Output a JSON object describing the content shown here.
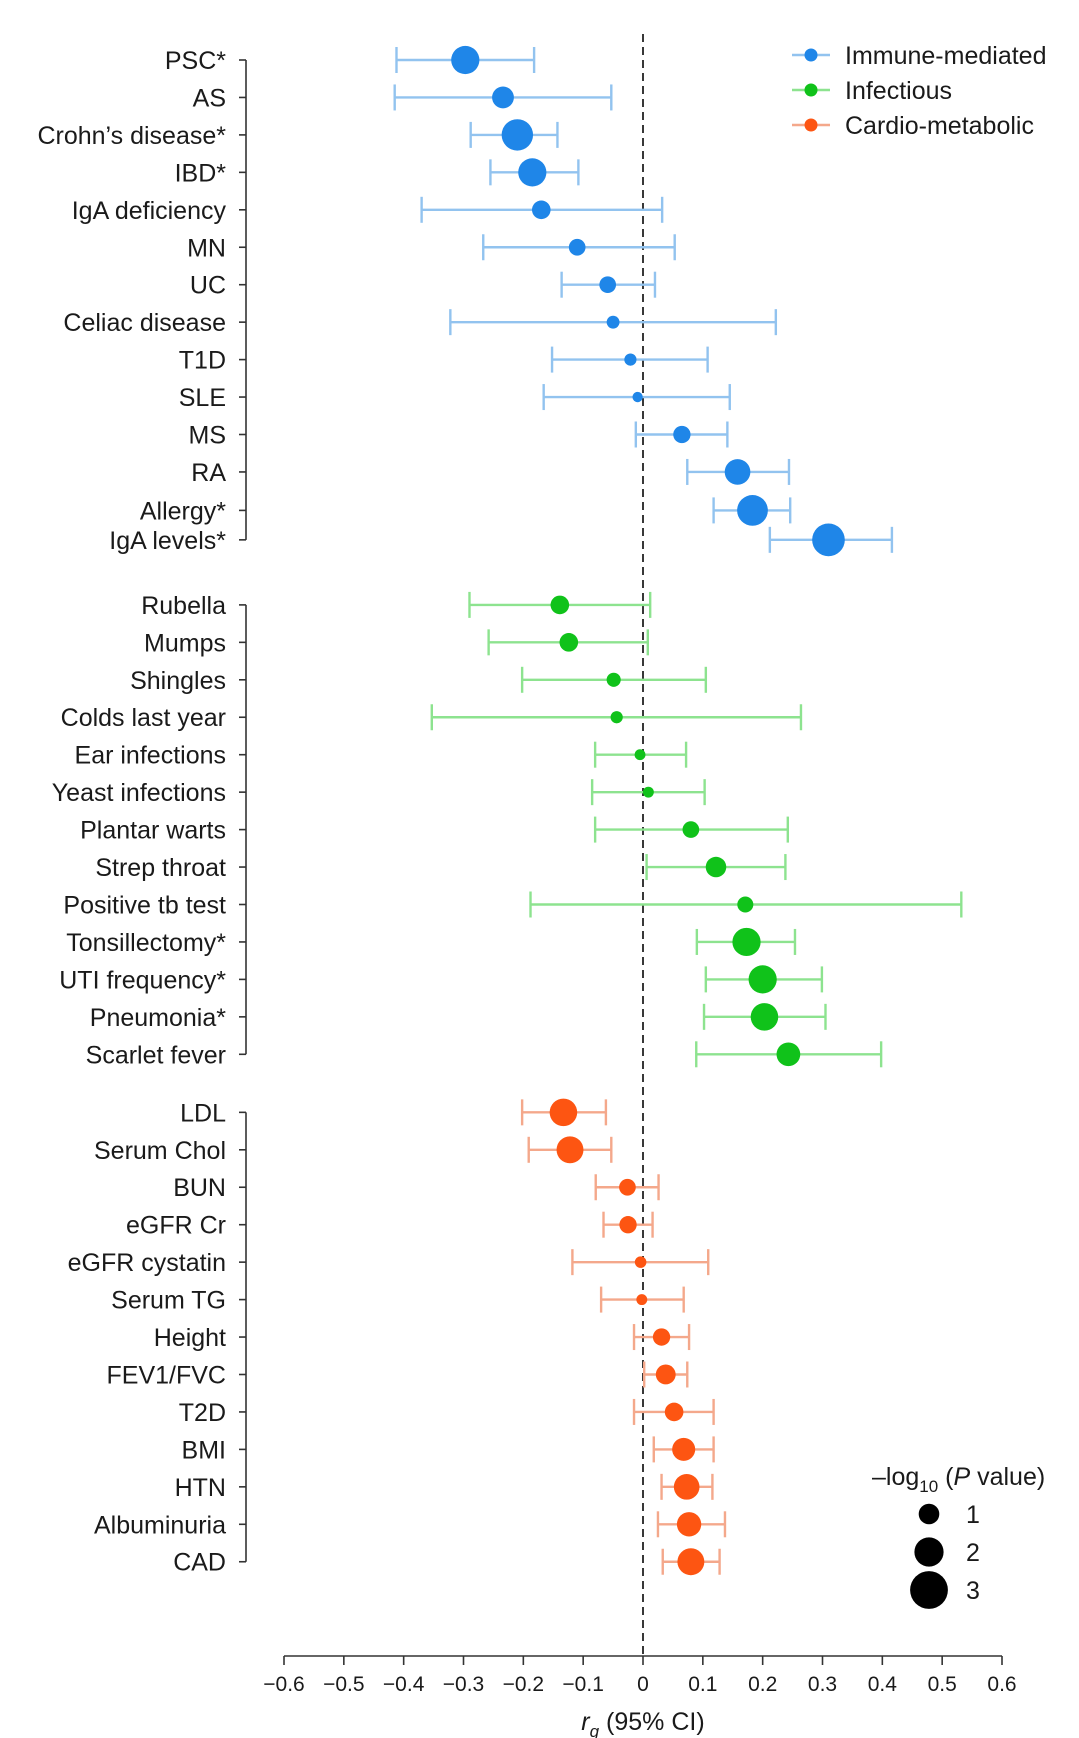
{
  "chart_data": {
    "type": "forest",
    "xlabel_symbol": "r",
    "xlabel_subscript": "g",
    "xlabel_rest": " (95% CI)",
    "xlim": [
      -0.6,
      0.6
    ],
    "xticks": [
      -0.6,
      -0.5,
      -0.4,
      -0.3,
      -0.2,
      -0.1,
      0,
      0.1,
      0.2,
      0.3,
      0.4,
      0.5,
      0.6
    ],
    "xtick_labels": [
      "−0.6",
      "−0.5",
      "−0.4",
      "−0.3",
      "−0.2",
      "−0.1",
      "0",
      "0.1",
      "0.2",
      "0.3",
      "0.4",
      "0.5",
      "0.6"
    ],
    "reference_line": 0,
    "colors": {
      "immune": "#1f86e8",
      "infectious": "#10c21a",
      "cardio": "#fd5512",
      "immune_ci": "#92c3ef",
      "infectious_ci": "#8de38f",
      "cardio_ci": "#f4a88b"
    },
    "legend": [
      {
        "group": "immune",
        "label": "Immune-mediated"
      },
      {
        "group": "infectious",
        "label": "Infectious"
      },
      {
        "group": "cardio",
        "label": "Cardio-metabolic"
      }
    ],
    "size_legend": {
      "title_prefix": "–log",
      "title_sub": "10",
      "title_open": " (",
      "title_italic": "P",
      "title_rest": " value)",
      "levels": [
        1,
        2,
        3
      ]
    },
    "series": [
      {
        "group": "immune",
        "name": "Immune-mediated",
        "items": [
          {
            "label": "PSC*",
            "r": -0.297,
            "lo": -0.412,
            "hi": -0.182,
            "p": 3.0
          },
          {
            "label": "AS",
            "r": -0.234,
            "lo": -0.415,
            "hi": -0.053,
            "p": 2.0
          },
          {
            "label": "Crohn’s disease*",
            "r": -0.21,
            "lo": -0.288,
            "hi": -0.143,
            "p": 3.5
          },
          {
            "label": "IBD*",
            "r": -0.185,
            "lo": -0.255,
            "hi": -0.108,
            "p": 3.0
          },
          {
            "label": "IgA deficiency",
            "r": -0.17,
            "lo": -0.37,
            "hi": 0.032,
            "p": 1.5
          },
          {
            "label": "MN",
            "r": -0.11,
            "lo": -0.267,
            "hi": 0.053,
            "p": 1.2
          },
          {
            "label": "UC",
            "r": -0.059,
            "lo": -0.136,
            "hi": 0.02,
            "p": 1.2
          },
          {
            "label": "Celiac disease",
            "r": -0.05,
            "lo": -0.322,
            "hi": 0.222,
            "p": 0.6
          },
          {
            "label": "T1D",
            "r": -0.021,
            "lo": -0.152,
            "hi": 0.108,
            "p": 0.5
          },
          {
            "label": "SLE",
            "r": -0.009,
            "lo": -0.166,
            "hi": 0.145,
            "p": 0.2
          },
          {
            "label": "MS",
            "r": 0.065,
            "lo": -0.012,
            "hi": 0.141,
            "p": 1.3
          },
          {
            "label": "RA",
            "r": 0.158,
            "lo": 0.074,
            "hi": 0.244,
            "p": 2.6
          },
          {
            "label": "Allergy*",
            "r": 0.183,
            "lo": 0.118,
            "hi": 0.246,
            "p": 3.4
          },
          {
            "label": "IgA levels*",
            "r": 0.31,
            "lo": 0.212,
            "hi": 0.416,
            "p": 3.7
          }
        ]
      },
      {
        "group": "infectious",
        "name": "Infectious",
        "items": [
          {
            "label": "Rubella",
            "r": -0.139,
            "lo": -0.29,
            "hi": 0.012,
            "p": 1.5
          },
          {
            "label": "Mumps",
            "r": -0.124,
            "lo": -0.258,
            "hi": 0.008,
            "p": 1.5
          },
          {
            "label": "Shingles",
            "r": -0.049,
            "lo": -0.202,
            "hi": 0.105,
            "p": 0.8
          },
          {
            "label": "Colds last year",
            "r": -0.044,
            "lo": -0.353,
            "hi": 0.264,
            "p": 0.5
          },
          {
            "label": "Ear infections",
            "r": -0.005,
            "lo": -0.08,
            "hi": 0.072,
            "p": 0.3
          },
          {
            "label": "Yeast infections",
            "r": 0.009,
            "lo": -0.085,
            "hi": 0.103,
            "p": 0.3
          },
          {
            "label": "Plantar warts",
            "r": 0.08,
            "lo": -0.08,
            "hi": 0.242,
            "p": 1.2
          },
          {
            "label": "Strep throat",
            "r": 0.122,
            "lo": 0.006,
            "hi": 0.238,
            "p": 1.8
          },
          {
            "label": "Positive tb test",
            "r": 0.171,
            "lo": -0.188,
            "hi": 0.532,
            "p": 1.1
          },
          {
            "label": "Tonsillectomy*",
            "r": 0.173,
            "lo": 0.09,
            "hi": 0.254,
            "p": 3.0
          },
          {
            "label": "UTI frequency*",
            "r": 0.2,
            "lo": 0.105,
            "hi": 0.299,
            "p": 3.0
          },
          {
            "label": "Pneumonia*",
            "r": 0.203,
            "lo": 0.102,
            "hi": 0.305,
            "p": 2.9
          },
          {
            "label": "Scarlet fever",
            "r": 0.243,
            "lo": 0.089,
            "hi": 0.398,
            "p": 2.3
          }
        ]
      },
      {
        "group": "cardio",
        "name": "Cardio-metabolic",
        "items": [
          {
            "label": "LDL",
            "r": -0.133,
            "lo": -0.202,
            "hi": -0.062,
            "p": 2.9
          },
          {
            "label": "Serum Chol",
            "r": -0.122,
            "lo": -0.191,
            "hi": -0.053,
            "p": 2.8
          },
          {
            "label": "BUN",
            "r": -0.026,
            "lo": -0.079,
            "hi": 0.026,
            "p": 1.2
          },
          {
            "label": "eGFR Cr",
            "r": -0.025,
            "lo": -0.066,
            "hi": 0.016,
            "p": 1.3
          },
          {
            "label": "eGFR cystatin",
            "r": -0.004,
            "lo": -0.118,
            "hi": 0.109,
            "p": 0.4
          },
          {
            "label": "Serum TG",
            "r": -0.002,
            "lo": -0.07,
            "hi": 0.068,
            "p": 0.3
          },
          {
            "label": "Height",
            "r": 0.031,
            "lo": -0.015,
            "hi": 0.077,
            "p": 1.3
          },
          {
            "label": "FEV1/FVC",
            "r": 0.038,
            "lo": 0.002,
            "hi": 0.074,
            "p": 1.7
          },
          {
            "label": "T2D",
            "r": 0.052,
            "lo": -0.015,
            "hi": 0.118,
            "p": 1.5
          },
          {
            "label": "BMI",
            "r": 0.068,
            "lo": 0.018,
            "hi": 0.118,
            "p": 2.2
          },
          {
            "label": "HTN",
            "r": 0.073,
            "lo": 0.031,
            "hi": 0.116,
            "p": 2.6
          },
          {
            "label": "Albuminuria",
            "r": 0.077,
            "lo": 0.025,
            "hi": 0.137,
            "p": 2.4
          },
          {
            "label": "CAD",
            "r": 0.08,
            "lo": 0.033,
            "hi": 0.128,
            "p": 2.8
          }
        ]
      }
    ]
  }
}
